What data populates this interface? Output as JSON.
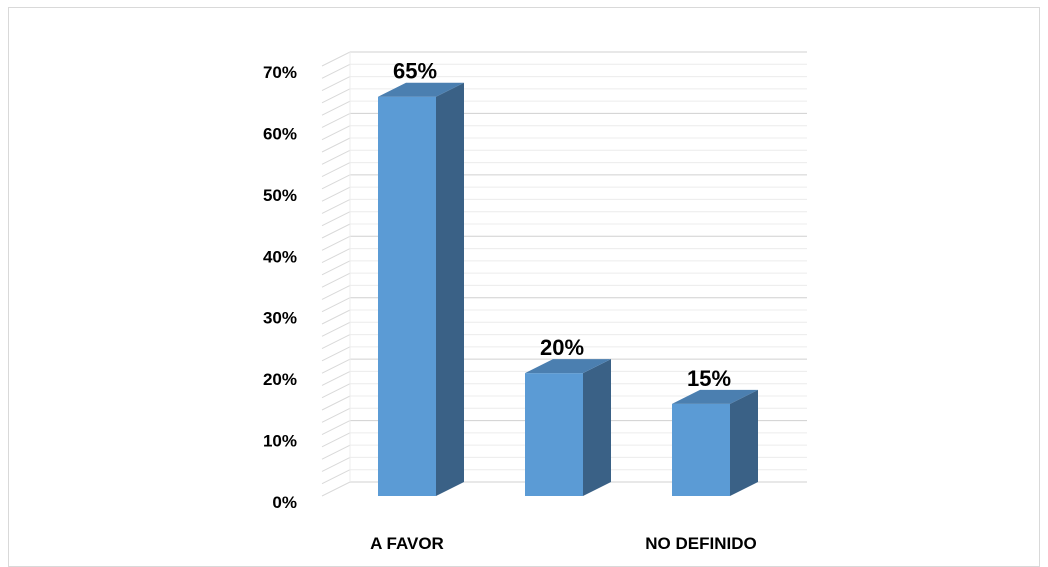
{
  "chart_data": {
    "type": "bar",
    "title": "",
    "xlabel": "",
    "ylabel": "",
    "categories": [
      "A FAVOR",
      "",
      "NO DEFINIDO"
    ],
    "values": [
      65,
      20,
      15
    ],
    "data_labels": [
      "65%",
      "20%",
      "15%"
    ],
    "ylim": [
      0,
      70
    ],
    "yticks": [
      0,
      10,
      20,
      30,
      40,
      50,
      60,
      70
    ],
    "ytick_labels": [
      "0%",
      "10%",
      "20%",
      "30%",
      "40%",
      "50%",
      "60%",
      "70%"
    ],
    "grid": true,
    "legend": "none",
    "style": "3d-columns",
    "colors": {
      "bar_front": "#5b9bd5",
      "bar_side": "#3a6186",
      "bar_top": "#4b7fb0",
      "grid": "#d9d9d9"
    }
  }
}
